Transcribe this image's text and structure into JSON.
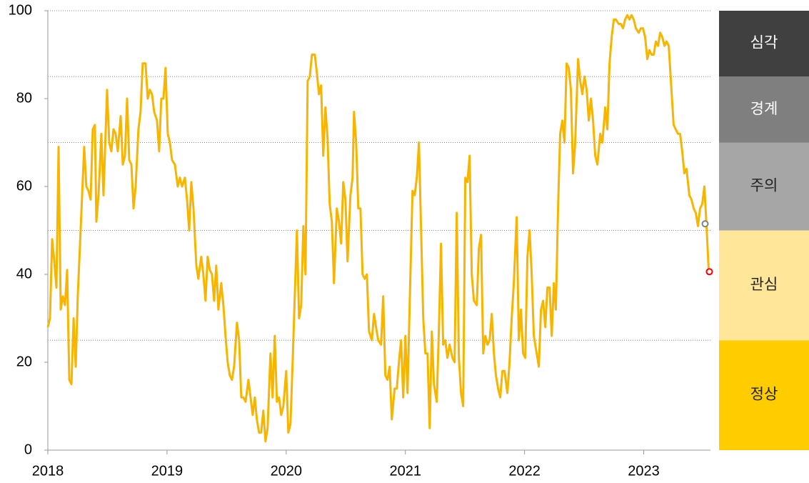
{
  "chart_data": {
    "type": "line",
    "xlim": [
      2018,
      2023.56
    ],
    "xticks": [
      2018,
      2019,
      2020,
      2021,
      2022,
      2023
    ],
    "ylim": [
      0,
      100
    ],
    "yticks": [
      0,
      20,
      40,
      60,
      80,
      100
    ],
    "x": [
      2018.0,
      2018.018,
      2018.036,
      2018.054,
      2018.072,
      2018.09,
      2018.108,
      2018.126,
      2018.144,
      2018.162,
      2018.18,
      2018.198,
      2018.216,
      2018.234,
      2018.251,
      2018.275,
      2018.305,
      2018.323,
      2018.341,
      2018.359,
      2018.377,
      2018.395,
      2018.407,
      2018.425,
      2018.449,
      2018.467,
      2018.497,
      2018.515,
      2018.533,
      2018.551,
      2018.569,
      2018.587,
      2018.611,
      2018.629,
      2018.647,
      2018.665,
      2018.683,
      2018.701,
      2018.719,
      2018.737,
      2018.76,
      2018.778,
      2018.796,
      2018.82,
      2018.838,
      2018.856,
      2018.874,
      2018.892,
      2018.916,
      2018.934,
      2018.952,
      2018.97,
      2018.988,
      2019.006,
      2019.024,
      2019.042,
      2019.066,
      2019.09,
      2019.108,
      2019.126,
      2019.15,
      2019.168,
      2019.186,
      2019.204,
      2019.222,
      2019.246,
      2019.263,
      2019.287,
      2019.305,
      2019.323,
      2019.341,
      2019.359,
      2019.377,
      2019.395,
      2019.413,
      2019.431,
      2019.455,
      2019.473,
      2019.491,
      2019.509,
      2019.527,
      2019.545,
      2019.563,
      2019.587,
      2019.605,
      2019.623,
      2019.641,
      2019.659,
      2019.683,
      2019.701,
      2019.719,
      2019.737,
      2019.754,
      2019.772,
      2019.79,
      2019.808,
      2019.826,
      2019.844,
      2019.868,
      2019.886,
      2019.904,
      2019.922,
      2019.94,
      2019.958,
      2019.976,
      2020.0,
      2020.018,
      2020.036,
      2020.054,
      2020.078,
      2020.09,
      2020.108,
      2020.126,
      2020.144,
      2020.162,
      2020.18,
      2020.198,
      2020.216,
      2020.24,
      2020.257,
      2020.275,
      2020.293,
      2020.311,
      2020.329,
      2020.347,
      2020.365,
      2020.383,
      2020.401,
      2020.425,
      2020.443,
      2020.461,
      2020.479,
      2020.497,
      2020.515,
      2020.539,
      2020.557,
      2020.569,
      2020.587,
      2020.605,
      2020.623,
      2020.641,
      2020.659,
      2020.677,
      2020.695,
      2020.719,
      2020.737,
      2020.754,
      2020.772,
      2020.796,
      2020.814,
      2020.832,
      2020.85,
      2020.868,
      2020.886,
      2020.91,
      2020.928,
      2020.946,
      2020.964,
      2020.982,
      2021.0,
      2021.018,
      2021.036,
      2021.06,
      2021.078,
      2021.096,
      2021.114,
      2021.132,
      2021.15,
      2021.168,
      2021.186,
      2021.204,
      2021.222,
      2021.24,
      2021.263,
      2021.281,
      2021.299,
      2021.317,
      2021.335,
      2021.353,
      2021.371,
      2021.395,
      2021.413,
      2021.431,
      2021.449,
      2021.467,
      2021.485,
      2021.503,
      2021.521,
      2021.539,
      2021.557,
      2021.575,
      2021.599,
      2021.617,
      2021.635,
      2021.653,
      2021.671,
      2021.689,
      2021.707,
      2021.725,
      2021.743,
      2021.76,
      2021.778,
      2021.796,
      2021.814,
      2021.832,
      2021.856,
      2021.874,
      2021.892,
      2021.91,
      2021.934,
      2021.952,
      2021.97,
      2021.988,
      2022.006,
      2022.024,
      2022.042,
      2022.06,
      2022.078,
      2022.102,
      2022.12,
      2022.138,
      2022.156,
      2022.174,
      2022.192,
      2022.21,
      2022.228,
      2022.246,
      2022.263,
      2022.281,
      2022.299,
      2022.317,
      2022.335,
      2022.353,
      2022.371,
      2022.389,
      2022.407,
      2022.425,
      2022.449,
      2022.467,
      2022.485,
      2022.503,
      2022.521,
      2022.539,
      2022.557,
      2022.575,
      2022.593,
      2022.611,
      2022.635,
      2022.653,
      2022.677,
      2022.695,
      2022.713,
      2022.731,
      2022.749,
      2022.766,
      2022.79,
      2022.808,
      2022.826,
      2022.844,
      2022.862,
      2022.88,
      2022.898,
      2022.916,
      2022.934,
      2022.958,
      2022.976,
      2022.994,
      2023.012,
      2023.03,
      2023.048,
      2023.066,
      2023.084,
      2023.102,
      2023.12,
      2023.138,
      2023.156,
      2023.174,
      2023.192,
      2023.21,
      2023.228,
      2023.251,
      2023.269,
      2023.287,
      2023.305,
      2023.323,
      2023.341,
      2023.359,
      2023.383,
      2023.401,
      2023.419,
      2023.437,
      2023.455,
      2023.473,
      2023.491,
      2023.509,
      2023.527,
      2023.545
    ],
    "series": [
      {
        "color": "#f7b500",
        "values": [
          28,
          30,
          48,
          43,
          37,
          69,
          32,
          35,
          33,
          41,
          16,
          15,
          30,
          19,
          35,
          50,
          69,
          60,
          59,
          57,
          73,
          74,
          52,
          58,
          72,
          58,
          82,
          70,
          68,
          73,
          72,
          68,
          76,
          65,
          67,
          80,
          66,
          65,
          55,
          60,
          73,
          77,
          88,
          88,
          80,
          82,
          81,
          77,
          75,
          68,
          80,
          80,
          87,
          72,
          70,
          66,
          65,
          60,
          62,
          60,
          62,
          57,
          50,
          61,
          55,
          42,
          39,
          44,
          40,
          34,
          44,
          41,
          40,
          34,
          42,
          32,
          38,
          33,
          26,
          20,
          17,
          16,
          19,
          29,
          25,
          12,
          12,
          11,
          16,
          12,
          8,
          12,
          7,
          4,
          4,
          9,
          2,
          5,
          22,
          12,
          26,
          11,
          12,
          8,
          10,
          18,
          4,
          6,
          20,
          40,
          50,
          30,
          33,
          51,
          40,
          84,
          85,
          90,
          90,
          86,
          81,
          83,
          67,
          78,
          71,
          56,
          52,
          38,
          55,
          52,
          47,
          61,
          57,
          43,
          58,
          62,
          77,
          70,
          55,
          55,
          40,
          39,
          40,
          27,
          25,
          31,
          28,
          25,
          24,
          35,
          17,
          16,
          19,
          7,
          14,
          14,
          20,
          25,
          12,
          26,
          13,
          33,
          59,
          58,
          62,
          70,
          50,
          30,
          22,
          22,
          5,
          27,
          15,
          11,
          27,
          47,
          24,
          25,
          21,
          24,
          21,
          20,
          54,
          21,
          13,
          10,
          62,
          61,
          67,
          40,
          34,
          33,
          46,
          49,
          22,
          26,
          24,
          25,
          31,
          22,
          17,
          14,
          12,
          18,
          18,
          13,
          20,
          30,
          38,
          53,
          25,
          32,
          22,
          21,
          44,
          50,
          40,
          26,
          22,
          19,
          32,
          34,
          28,
          37,
          37,
          26,
          38,
          32,
          55,
          72,
          75,
          70,
          88,
          87,
          82,
          63,
          70,
          89,
          84,
          81,
          85,
          82,
          75,
          80,
          75,
          67,
          65,
          72,
          70,
          78,
          73,
          88,
          94,
          98,
          98,
          97,
          97,
          96,
          98,
          99,
          98,
          99,
          98,
          96,
          95,
          96,
          96,
          94,
          89,
          91,
          90,
          90,
          93,
          92,
          95,
          94,
          92,
          93,
          92,
          84,
          74,
          73,
          72,
          72,
          68,
          63,
          64,
          58,
          57,
          55,
          54,
          51,
          55,
          56,
          60,
          51,
          41
        ]
      }
    ],
    "highlights": [
      {
        "x": 2023.515,
        "y": 51.5,
        "color": "#808080"
      },
      {
        "x": 2023.551,
        "y": 40.6,
        "color": "#ff0000"
      }
    ],
    "bands": [
      {
        "label": "정상",
        "from": 0,
        "to": 25,
        "color": "#ffcc00"
      },
      {
        "label": "관심",
        "from": 25,
        "to": 50,
        "color": "#ffe699"
      },
      {
        "label": "주의",
        "from": 50,
        "to": 70,
        "color": "#a6a6a6"
      },
      {
        "label": "경계",
        "from": 70,
        "to": 85,
        "color": "#7f7f7f"
      },
      {
        "label": "심각",
        "from": 85,
        "to": 100,
        "color": "#404040"
      }
    ]
  }
}
